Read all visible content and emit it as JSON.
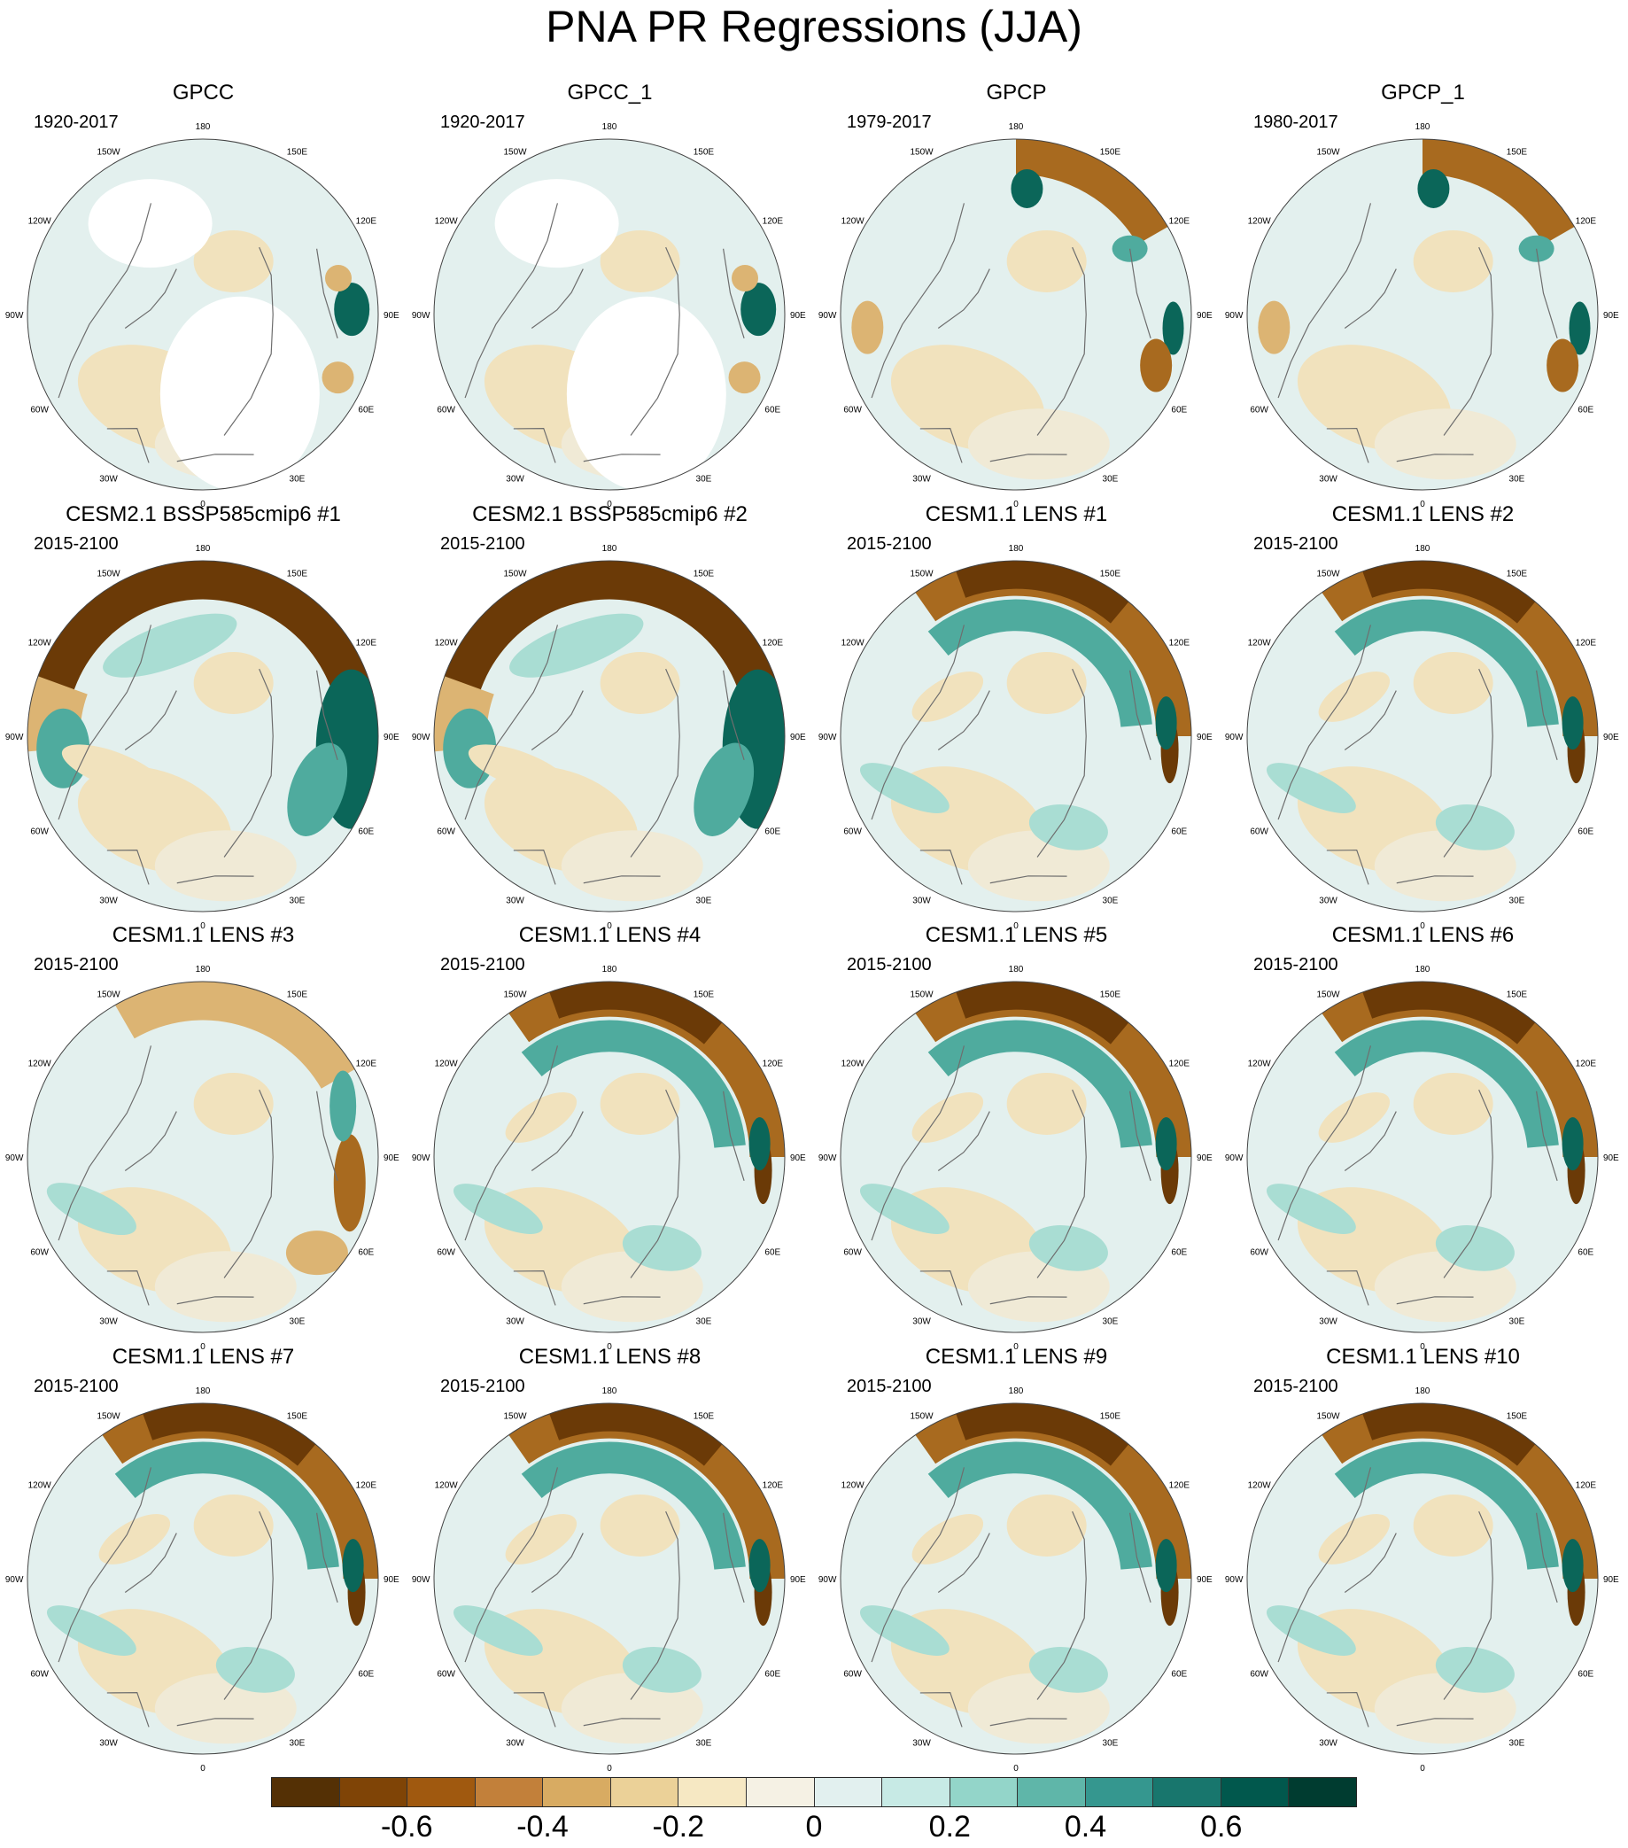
{
  "title": "PNA PR Regressions (JJA)",
  "panels": [
    {
      "title": "GPCC",
      "period": "1920-2017",
      "pattern": "obs_gpcc"
    },
    {
      "title": "GPCC_1",
      "period": "1920-2017",
      "pattern": "obs_gpcc"
    },
    {
      "title": "GPCP",
      "period": "1979-2017",
      "pattern": "obs_gpcp"
    },
    {
      "title": "GPCP_1",
      "period": "1980-2017",
      "pattern": "obs_gpcp"
    },
    {
      "title": "CESM2.1 BSSP585cmip6 #1",
      "period": "2015-2100",
      "pattern": "cesm2"
    },
    {
      "title": "CESM2.1 BSSP585cmip6 #2",
      "period": "2015-2100",
      "pattern": "cesm2"
    },
    {
      "title": "CESM1.1 LENS #1",
      "period": "2015-2100",
      "pattern": "lens"
    },
    {
      "title": "CESM1.1 LENS #2",
      "period": "2015-2100",
      "pattern": "lens"
    },
    {
      "title": "CESM1.1 LENS #3",
      "period": "2015-2100",
      "pattern": "lens_weak"
    },
    {
      "title": "CESM1.1 LENS #4",
      "period": "2015-2100",
      "pattern": "lens"
    },
    {
      "title": "CESM1.1 LENS #5",
      "period": "2015-2100",
      "pattern": "lens"
    },
    {
      "title": "CESM1.1 LENS #6",
      "period": "2015-2100",
      "pattern": "lens"
    },
    {
      "title": "CESM1.1 LENS #7",
      "period": "2015-2100",
      "pattern": "lens"
    },
    {
      "title": "CESM1.1 LENS #8",
      "period": "2015-2100",
      "pattern": "lens"
    },
    {
      "title": "CESM1.1 LENS #9",
      "period": "2015-2100",
      "pattern": "lens"
    },
    {
      "title": "CESM1.1 LENS #10",
      "period": "2015-2100",
      "pattern": "lens"
    }
  ],
  "longitude_labels": [
    "180",
    "150E",
    "120E",
    "90E",
    "60E",
    "30E",
    "0",
    "30W",
    "60W",
    "90W",
    "120W",
    "150W"
  ],
  "colorbar": {
    "colors": [
      "#543005",
      "#7f4406",
      "#a0590f",
      "#c2803a",
      "#d8ab62",
      "#ebd198",
      "#f6e8c3",
      "#f5f1e4",
      "#e2f0ef",
      "#c7eae5",
      "#93d5c9",
      "#5fb6a9",
      "#35978f",
      "#18766d",
      "#01584d",
      "#003c30"
    ],
    "tick_labels": [
      "-0.6",
      "-0.4",
      "-0.2",
      "0",
      "0.2",
      "0.4",
      "0.6"
    ]
  },
  "blob_colors": {
    "brown_dark": "#6b3a07",
    "brown": "#a86a1f",
    "brown_light": "#dcb473",
    "tan": "#f1e2bd",
    "teal_light": "#a9ddd3",
    "teal": "#4fab9e",
    "teal_dark": "#0b6659",
    "base": "#e3f0ee",
    "coast": "#6e6e6e"
  }
}
